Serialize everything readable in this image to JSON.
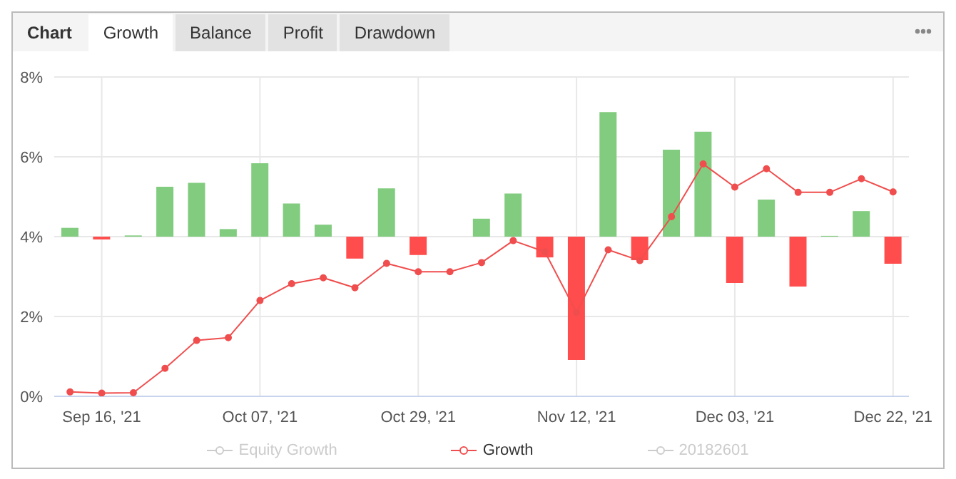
{
  "chart_data": {
    "type": "line",
    "annotations": [
      "Chart",
      "Growth",
      "Balance",
      "Profit",
      "Drawdown"
    ],
    "categories": [
      null,
      "Sep 16, '21",
      null,
      null,
      null,
      null,
      "Oct 07, '21",
      null,
      null,
      null,
      null,
      "Oct 29, '21",
      null,
      null,
      null,
      null,
      "Nov 12, '21",
      null,
      null,
      null,
      null,
      "Dec 03, '21",
      null,
      null,
      null,
      null,
      "Dec 22, '21"
    ],
    "series": [
      {
        "name": "Equity Growth",
        "color": "#cccccc",
        "values": [
          null,
          null,
          null,
          null,
          null,
          null,
          null,
          null,
          null,
          null,
          null,
          null,
          null,
          null,
          null,
          null,
          null,
          null,
          null,
          null,
          null,
          null,
          null,
          null,
          null,
          null,
          null
        ]
      },
      {
        "name": "Growth",
        "color": "#f04e4e",
        "marker": "circle",
        "values": [
          0.11,
          0.08,
          0.09,
          0.7,
          1.4,
          1.47,
          2.4,
          2.82,
          2.97,
          2.72,
          3.33,
          3.12,
          3.12,
          3.35,
          3.9,
          3.62,
          2.1,
          3.67,
          3.4,
          4.5,
          5.82,
          5.24,
          5.7,
          5.11,
          5.11,
          5.45,
          5.12
        ]
      },
      {
        "name": "20182601",
        "color": "#cccccc",
        "values": [
          null,
          null,
          null,
          null,
          null,
          null,
          null,
          null,
          null,
          null,
          null,
          null,
          null,
          null,
          null,
          null,
          null,
          null,
          null,
          null,
          null,
          null,
          null,
          null,
          null,
          null,
          null
        ]
      },
      {
        "type": "bar",
        "base": [
          4,
          4,
          4,
          4,
          4,
          4,
          4,
          4,
          4,
          4,
          4,
          4,
          null,
          4,
          4,
          4,
          4,
          4,
          4,
          4,
          4,
          4,
          4,
          4,
          4,
          4,
          4
        ],
        "values": [
          0.22,
          -0.07,
          0.03,
          1.25,
          1.35,
          0.19,
          1.84,
          0.83,
          0.3,
          -0.55,
          1.21,
          -0.46,
          null,
          0.45,
          1.08,
          -0.52,
          -3.09,
          3.12,
          -0.59,
          2.18,
          2.63,
          -1.16,
          0.93,
          -1.25,
          0.02,
          0.64,
          -0.68
        ],
        "colors": [
          "#82cc7f",
          "#ff4d4d",
          "#82cc7f",
          "#82cc7f",
          "#82cc7f",
          "#82cc7f",
          "#82cc7f",
          "#82cc7f",
          "#82cc7f",
          "#ff4d4d",
          "#82cc7f",
          "#ff4d4d",
          "#82cc7f",
          "#82cc7f",
          "#82cc7f",
          "#ff4d4d",
          "#ff4d4d",
          "#82cc7f",
          "#ff4d4d",
          "#82cc7f",
          "#82cc7f",
          "#ff4d4d",
          "#82cc7f",
          "#ff4d4d",
          "#82cc7f",
          "#82cc7f",
          "#ff4d4d"
        ]
      }
    ],
    "ylim": [
      0,
      8
    ],
    "yticks": [
      {
        "value": 0,
        "label": "0%"
      },
      {
        "value": 2,
        "label": "2%"
      },
      {
        "value": 4,
        "label": "4%"
      },
      {
        "value": 6,
        "label": "6%"
      },
      {
        "value": 8,
        "label": "8%"
      }
    ],
    "grid": true,
    "legend": "bottom"
  }
}
